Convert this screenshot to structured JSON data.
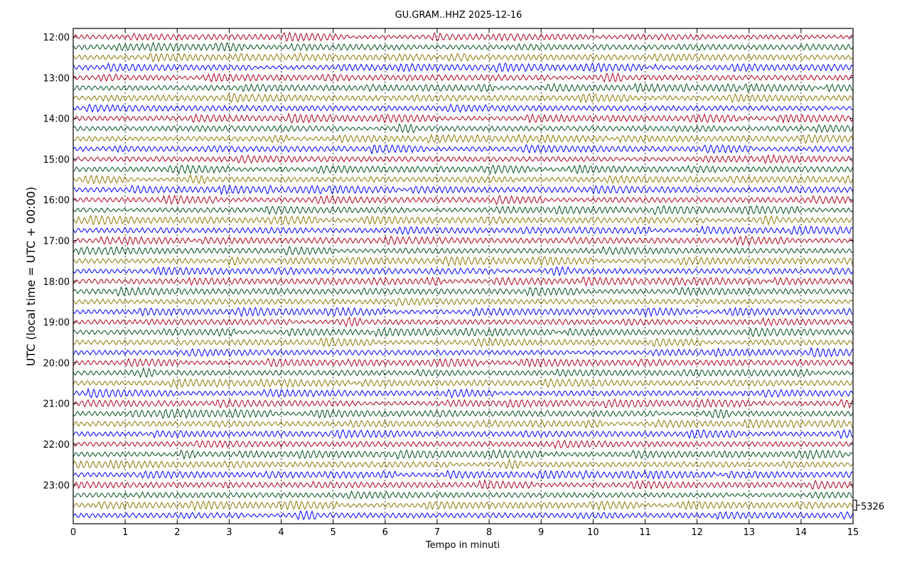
{
  "chart_data": {
    "type": "line",
    "title": "GU.GRAM..HHZ 2025-12-16",
    "xlabel": "Tempo in minuti",
    "ylabel": "UTC (local time = UTC + 00:00)",
    "xlim": [
      0,
      15
    ],
    "x_ticks": [
      "0",
      "1",
      "2",
      "3",
      "4",
      "5",
      "6",
      "7",
      "8",
      "9",
      "10",
      "11",
      "12",
      "13",
      "14",
      "15"
    ],
    "y_ticks": [
      "12:00",
      "13:00",
      "14:00",
      "15:00",
      "16:00",
      "17:00",
      "18:00",
      "19:00",
      "20:00",
      "21:00",
      "22:00",
      "23:00"
    ],
    "traces_per_hour": 4,
    "trace_count": 48,
    "trace_colors": [
      "#b0001e",
      "#00501e",
      "#8c7800",
      "#0000ff"
    ],
    "grid": "vertical dotted at each minute",
    "scale_label": "5326"
  }
}
